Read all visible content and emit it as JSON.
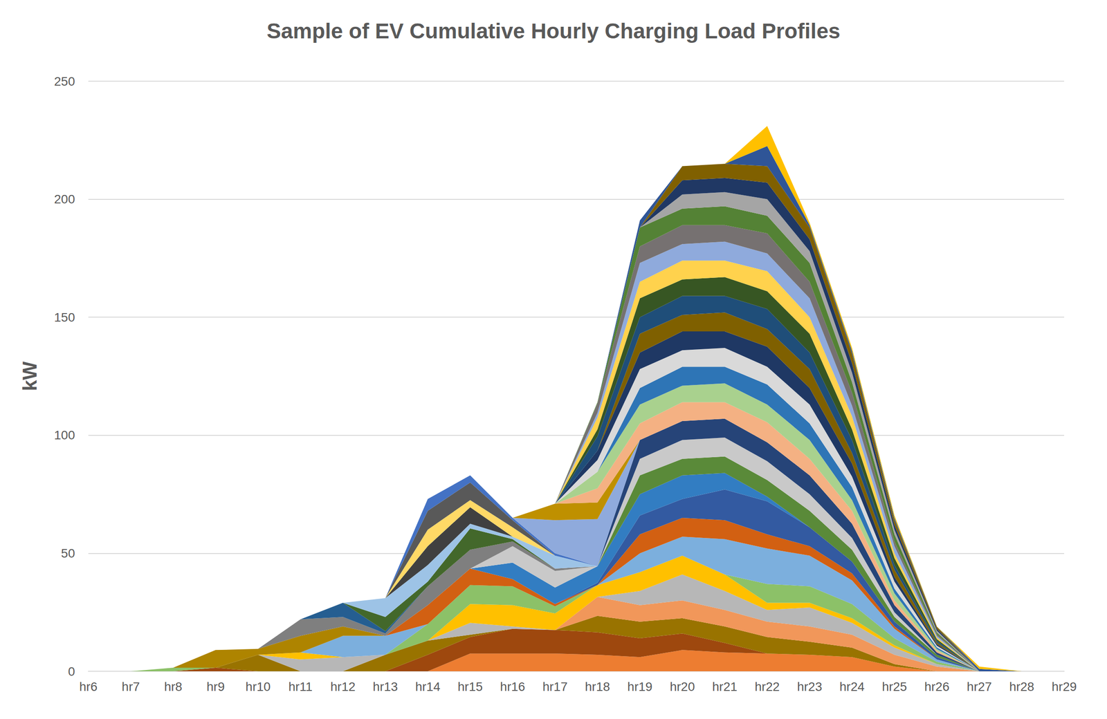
{
  "chart_data": {
    "type": "area",
    "title": "Sample of EV Cumulative Hourly Charging Load Profiles",
    "y_label": "kW",
    "categories": [
      "hr6",
      "hr7",
      "hr8",
      "hr9",
      "hr10",
      "hr11",
      "hr12",
      "hr13",
      "hr14",
      "hr15",
      "hr16",
      "hr17",
      "hr18",
      "hr19",
      "hr20",
      "hr21",
      "hr22",
      "hr23",
      "hr24",
      "hr25",
      "hr26",
      "hr27",
      "hr28",
      "hr29"
    ],
    "ylim": [
      0,
      250
    ],
    "yticks": [
      0,
      50,
      100,
      150,
      200,
      250
    ],
    "grid": true,
    "stacked": true,
    "series": [
      {
        "color": "#ED7D31",
        "values": [
          0,
          0,
          0,
          0,
          0,
          0,
          0,
          0,
          0,
          7.5,
          7.5,
          7.5,
          7,
          6,
          9,
          8,
          7.5,
          7,
          6,
          2,
          0,
          0,
          0,
          0
        ]
      },
      {
        "color": "#9E480E",
        "values": [
          0,
          0,
          0,
          1.5,
          0,
          0,
          0,
          0,
          7,
          7,
          10.5,
          10,
          9.5,
          8,
          7,
          4,
          0,
          0,
          0,
          0,
          0,
          0,
          0,
          0
        ]
      },
      {
        "color": "#997300",
        "values": [
          0,
          0,
          0,
          0,
          7,
          0,
          0,
          7,
          6,
          1,
          0,
          0,
          7,
          7,
          6.5,
          7,
          7,
          5.5,
          4,
          1,
          0,
          0,
          0,
          0
        ]
      },
      {
        "color": "#F1975A",
        "values": [
          0,
          0,
          0,
          0,
          0,
          0,
          0,
          0,
          0,
          0,
          0,
          0,
          8,
          7,
          7.5,
          7,
          6.5,
          6.5,
          5.5,
          4,
          2,
          0,
          0,
          0
        ]
      },
      {
        "color": "#B7B7B7",
        "values": [
          0,
          0,
          0,
          0,
          0,
          5,
          6,
          0,
          0,
          5,
          1,
          0,
          0,
          6,
          11,
          8,
          5,
          8,
          5,
          3,
          1,
          0,
          0,
          0
        ]
      },
      {
        "color": "#FFC000",
        "values": [
          0,
          0,
          0,
          0,
          0,
          3,
          0,
          0,
          0,
          8,
          9,
          7,
          5,
          8,
          8,
          7,
          3,
          2,
          2,
          1,
          0,
          0,
          0,
          0
        ]
      },
      {
        "color": "#8CC168",
        "values": [
          0,
          0,
          1.5,
          0,
          0,
          0,
          0,
          0,
          7,
          8,
          8,
          3,
          0,
          0,
          0,
          0,
          8,
          7,
          6,
          3,
          1,
          0,
          0,
          0
        ]
      },
      {
        "color": "#7CAFDD",
        "values": [
          0,
          0,
          0,
          0,
          0,
          0,
          9,
          8,
          0,
          0,
          0,
          0,
          0,
          8,
          8,
          15,
          15,
          13,
          10,
          4,
          1,
          0,
          0,
          0
        ]
      },
      {
        "color": "#D26012",
        "values": [
          0,
          0,
          0,
          0,
          0,
          0,
          0,
          0,
          8,
          7,
          3,
          1,
          0,
          8,
          8,
          8,
          6,
          4,
          3,
          1,
          0,
          0,
          0,
          0
        ]
      },
      {
        "color": "#335AA1",
        "values": [
          0,
          0,
          0,
          0,
          0,
          0,
          0,
          0,
          0,
          0,
          0,
          0,
          1,
          8,
          8,
          13,
          14,
          8,
          5,
          2,
          1,
          0,
          0,
          0
        ]
      },
      {
        "color": "#327DC2",
        "values": [
          0,
          0,
          0,
          0,
          0,
          0,
          0,
          0,
          0,
          0,
          7,
          7,
          7,
          9,
          10,
          7,
          2,
          0,
          0,
          0,
          0,
          0,
          0,
          0
        ]
      },
      {
        "color": "#5A8A39",
        "values": [
          0,
          0,
          0,
          0,
          0,
          0,
          0,
          0,
          0,
          0,
          0,
          0,
          0,
          8,
          7,
          7,
          7,
          7,
          5,
          2,
          1,
          0,
          0,
          0
        ]
      },
      {
        "color": "#C9C9C9",
        "values": [
          0,
          0,
          0,
          0,
          0,
          0,
          0,
          0,
          0,
          0,
          7,
          7,
          0,
          7,
          8,
          8,
          8,
          7,
          5,
          2,
          0,
          0,
          0,
          0
        ]
      },
      {
        "color": "#264478",
        "values": [
          0,
          0,
          0,
          0,
          0,
          0,
          0,
          0,
          0,
          0,
          0,
          0,
          0,
          8,
          8,
          8,
          8,
          8,
          6,
          3,
          1,
          0,
          0,
          0
        ]
      },
      {
        "color": "#AE8400",
        "values": [
          0,
          0,
          0,
          7.5,
          2.5,
          7,
          4,
          0,
          0,
          0,
          0,
          0,
          0,
          0,
          0,
          0,
          0,
          0,
          0,
          0,
          0,
          0,
          0,
          0
        ]
      },
      {
        "color": "#7F7F7F",
        "values": [
          0,
          0,
          0,
          0,
          0,
          7,
          4,
          1,
          8,
          8,
          2,
          1,
          0,
          0,
          0,
          0,
          0,
          0,
          0,
          0,
          0,
          0,
          0,
          0
        ]
      },
      {
        "color": "#255E91",
        "values": [
          0,
          0,
          0,
          0,
          0,
          0,
          6,
          1,
          0,
          0,
          0,
          0,
          0,
          0,
          0,
          0,
          0,
          0,
          0,
          0,
          0,
          0,
          0,
          0
        ]
      },
      {
        "color": "#43682B",
        "values": [
          0,
          0,
          0,
          0,
          0,
          0,
          0,
          6,
          2,
          9,
          1,
          0,
          0,
          0,
          0,
          0,
          0,
          0,
          0,
          0,
          0,
          0,
          0,
          0
        ]
      },
      {
        "color": "#9DC3E6",
        "values": [
          0,
          0,
          0,
          0,
          0,
          0,
          0,
          8,
          7,
          2,
          1,
          5.5,
          0,
          0,
          0,
          0,
          0,
          0,
          0,
          0,
          0,
          0,
          0,
          0
        ]
      },
      {
        "color": "#404040",
        "values": [
          0,
          0,
          0,
          0,
          0,
          0,
          0,
          0,
          8,
          7,
          0,
          0,
          0,
          0,
          0,
          0,
          0,
          0,
          0,
          0,
          0,
          0,
          0,
          0
        ]
      },
      {
        "color": "#FFD966",
        "values": [
          0,
          0,
          0,
          0,
          0,
          0,
          0,
          0,
          7,
          3,
          4,
          0,
          0,
          0,
          0,
          0,
          0,
          0,
          0,
          0,
          0,
          0,
          0,
          0
        ]
      },
      {
        "color": "#595959",
        "values": [
          0,
          0,
          0,
          0,
          0,
          0,
          0,
          0,
          8,
          7.5,
          3,
          0,
          0,
          0,
          0,
          0,
          0,
          0,
          0,
          0,
          0,
          0,
          0,
          0
        ]
      },
      {
        "color": "#4472C4",
        "values": [
          0,
          0,
          0,
          0,
          0,
          0,
          0,
          0,
          5,
          3,
          1,
          1,
          0,
          0,
          0,
          0,
          0,
          0,
          0,
          0,
          0,
          0,
          0,
          0
        ]
      },
      {
        "color": "#8FAADC",
        "values": [
          0,
          0,
          0,
          0,
          0,
          0,
          0,
          0,
          0,
          0,
          0,
          14,
          20,
          0,
          0,
          0,
          0,
          0,
          0,
          0,
          0,
          0,
          0,
          0
        ]
      },
      {
        "color": "#BF9000",
        "values": [
          0,
          0,
          0,
          0,
          0,
          0,
          0,
          0,
          0,
          0,
          0,
          7,
          7,
          0,
          0,
          0,
          0,
          0,
          0,
          0,
          0,
          0,
          0,
          0
        ]
      },
      {
        "color": "#F4B183",
        "values": [
          0,
          0,
          0,
          0,
          0,
          0,
          0,
          0,
          0,
          0,
          0,
          0,
          6,
          7,
          8,
          7,
          8.5,
          7,
          5.5,
          2,
          0.7,
          0,
          0,
          0
        ]
      },
      {
        "color": "#A9D18E",
        "values": [
          0,
          0,
          0,
          0,
          0,
          0,
          0,
          0,
          0,
          0,
          0,
          0,
          7,
          8,
          7,
          8,
          7.5,
          8,
          4.5,
          3,
          0.7,
          0,
          0,
          0
        ]
      },
      {
        "color": "#2E75B6",
        "values": [
          0,
          0,
          0,
          0,
          0,
          0,
          0,
          0,
          0,
          0,
          0,
          0,
          0,
          7,
          8,
          7,
          8.5,
          7,
          5.5,
          2,
          0.7,
          0,
          0,
          0
        ]
      },
      {
        "color": "#D9D9D9",
        "values": [
          0,
          0,
          0,
          0,
          0,
          0,
          0,
          0,
          0,
          0,
          0,
          0,
          5,
          8,
          7,
          8,
          7.5,
          8,
          4.5,
          3,
          0.7,
          0,
          0,
          0
        ]
      },
      {
        "color": "#1F3864",
        "values": [
          0,
          0,
          0,
          0,
          0,
          0,
          0,
          0,
          0,
          0,
          0,
          0,
          4,
          7,
          8,
          7,
          8.5,
          7,
          5.5,
          2,
          0.7,
          0,
          0,
          0
        ]
      },
      {
        "color": "#7F6000",
        "values": [
          0,
          0,
          0,
          0,
          0,
          0,
          0,
          0,
          0,
          0,
          0,
          0,
          0,
          8,
          7,
          8,
          7.5,
          8,
          4.5,
          3,
          0.7,
          0,
          0,
          0
        ]
      },
      {
        "color": "#1F4E79",
        "values": [
          0,
          0,
          0,
          0,
          0,
          0,
          0,
          0,
          0,
          0,
          0,
          0,
          6,
          7,
          8,
          7,
          8.5,
          7,
          5.5,
          2,
          0.7,
          0,
          0,
          0
        ]
      },
      {
        "color": "#375623",
        "values": [
          0,
          0,
          0,
          0,
          0,
          0,
          0,
          0,
          0,
          0,
          0,
          0,
          3,
          8,
          7,
          8,
          7.5,
          8,
          4.5,
          3,
          0.7,
          0,
          0,
          0
        ]
      },
      {
        "color": "#FFD24D",
        "values": [
          0,
          0,
          0,
          0,
          0,
          0,
          0,
          0,
          0,
          0,
          0,
          0,
          5,
          7,
          8,
          7,
          8.5,
          7,
          5.5,
          2,
          0.7,
          0,
          0,
          0
        ]
      },
      {
        "color": "#8FAADC",
        "values": [
          0,
          0,
          0,
          0,
          0,
          0,
          0,
          0,
          0,
          0,
          0,
          0,
          2,
          8,
          7,
          8,
          7.5,
          8,
          4.5,
          3,
          0.7,
          0,
          0,
          0
        ]
      },
      {
        "color": "#767171",
        "values": [
          0,
          0,
          0,
          0,
          0,
          0,
          0,
          0,
          0,
          0,
          0,
          0,
          4,
          7,
          8,
          7,
          8.5,
          7,
          5.5,
          2,
          0.7,
          0,
          0,
          0
        ]
      },
      {
        "color": "#548235",
        "values": [
          0,
          0,
          0,
          0,
          0,
          0,
          0,
          0,
          0,
          0,
          0,
          0,
          0.5,
          8,
          7,
          8,
          7.5,
          8,
          4.5,
          3,
          0.7,
          0,
          0,
          0
        ]
      },
      {
        "color": "#A5A5A5",
        "values": [
          0,
          0,
          0,
          0,
          0,
          0,
          0,
          0,
          0,
          0,
          0,
          0,
          0,
          0,
          6,
          6,
          7,
          5,
          4,
          2,
          0.8,
          0,
          0,
          0
        ]
      },
      {
        "color": "#203864",
        "values": [
          0,
          0,
          0,
          0,
          0,
          0,
          0,
          0,
          0,
          0,
          0,
          0,
          0,
          0,
          6,
          6,
          7,
          5,
          4,
          2,
          0.8,
          0,
          0,
          0
        ]
      },
      {
        "color": "#806000",
        "values": [
          0,
          0,
          0,
          0,
          0,
          0,
          0,
          0,
          0,
          0,
          0,
          0,
          0,
          0,
          6,
          6,
          7,
          5,
          4,
          2,
          0.8,
          0,
          0,
          0
        ]
      },
      {
        "color": "#2F5597",
        "values": [
          0,
          0,
          0,
          0,
          0,
          0,
          0,
          0,
          0,
          0,
          0,
          0,
          0,
          3,
          0,
          0,
          8.5,
          1,
          1.25,
          1,
          0.1,
          1,
          0,
          0
        ]
      },
      {
        "color": "#FFC000",
        "values": [
          0,
          0,
          0,
          0,
          0,
          0,
          0,
          0,
          0,
          0,
          0,
          0,
          0,
          0,
          0,
          0,
          8.5,
          1,
          1.25,
          1,
          0.1,
          1,
          0,
          0
        ]
      }
    ]
  }
}
